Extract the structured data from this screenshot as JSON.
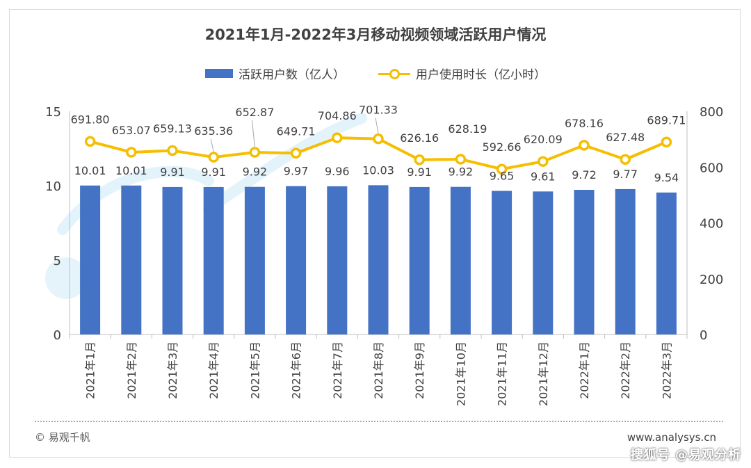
{
  "title": "2021年1月-2022年3月移动视频领域活跃用户情况",
  "legend": {
    "bars": "活跃用户数（亿人）",
    "line": "用户使用时长（亿小时）"
  },
  "footer": {
    "copyright": "© 易观千帆",
    "site": "www.analysys.cn",
    "corner_mark": "搜狐号 @易观分析"
  },
  "colors": {
    "bar": "#4472C4",
    "line": "#F5BE00"
  },
  "chart_data": {
    "type": "bar",
    "categories": [
      "2021年1月",
      "2021年2月",
      "2021年3月",
      "2021年4月",
      "2021年5月",
      "2021年6月",
      "2021年7月",
      "2021年8月",
      "2021年9月",
      "2021年10月",
      "2021年11月",
      "2021年12月",
      "2022年1月",
      "2022年2月",
      "2022年3月"
    ],
    "series": [
      {
        "name": "活跃用户数（亿人）",
        "type": "bar",
        "axis": "left",
        "values": [
          10.01,
          10.01,
          9.91,
          9.91,
          9.92,
          9.97,
          9.96,
          10.03,
          9.91,
          9.92,
          9.65,
          9.61,
          9.72,
          9.77,
          9.54
        ],
        "labels": [
          "10.01",
          "10.01",
          "9.91",
          "9.91",
          "9.92",
          "9.97",
          "9.96",
          "10.03",
          "9.91",
          "9.92",
          "9.65",
          "9.61",
          "9.72",
          "9.77",
          "9.54"
        ]
      },
      {
        "name": "用户使用时长（亿小时）",
        "type": "line",
        "axis": "right",
        "values": [
          691.8,
          653.07,
          659.13,
          635.36,
          652.87,
          649.71,
          704.86,
          701.33,
          626.16,
          628.19,
          592.66,
          620.09,
          678.16,
          627.48,
          689.71
        ],
        "labels": [
          "691.80",
          "653.07",
          "659.13",
          "635.36",
          "652.87",
          "649.71",
          "704.86",
          "701.33",
          "626.16",
          "628.19",
          "592.66",
          "620.09",
          "678.16",
          "627.48",
          "689.71"
        ]
      }
    ],
    "y_left": {
      "min": 0,
      "max": 15,
      "ticks": [
        "0",
        "5",
        "10",
        "15"
      ]
    },
    "y_right": {
      "min": 0,
      "max": 800,
      "ticks": [
        "0",
        "200",
        "400",
        "600",
        "800"
      ]
    },
    "grid": false,
    "legend_position": "top"
  }
}
